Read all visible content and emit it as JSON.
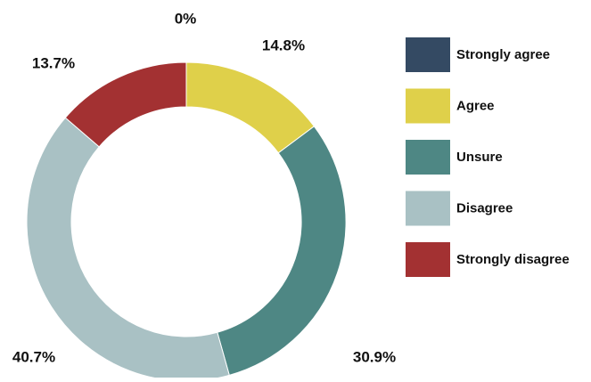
{
  "chart_data": {
    "type": "donut",
    "categories": [
      "Strongly agree",
      "Agree",
      "Unsure",
      "Disagree",
      "Strongly disagree"
    ],
    "values": [
      0,
      14.8,
      30.9,
      40.7,
      13.7
    ],
    "value_labels": [
      "0%",
      "14.8%",
      "30.9%",
      "40.7%",
      "13.7%"
    ],
    "colors": [
      "#344a63",
      "#dfd04a",
      "#4e8784",
      "#a9c1c4",
      "#a33132"
    ],
    "legend": "right"
  }
}
